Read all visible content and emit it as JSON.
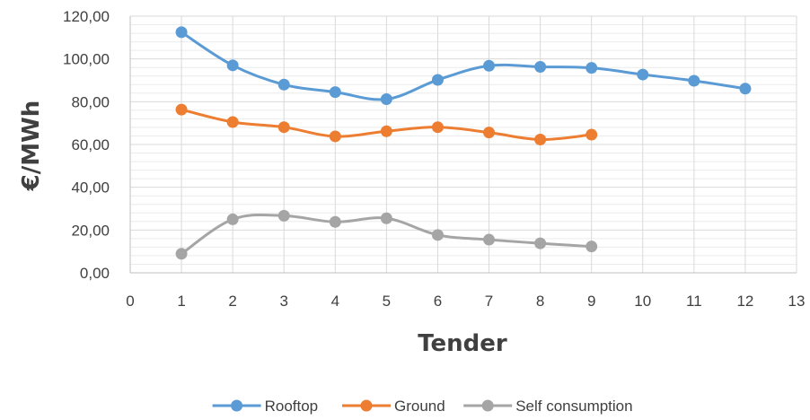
{
  "chart_data": {
    "type": "line",
    "title": "",
    "xlabel": "Tender",
    "ylabel": "€/MWh",
    "xlim": [
      0,
      13
    ],
    "ylim": [
      0,
      120
    ],
    "xticks": [
      0,
      1,
      2,
      3,
      4,
      5,
      6,
      7,
      8,
      9,
      10,
      11,
      12,
      13
    ],
    "xtick_labels": [
      "0",
      "1",
      "2",
      "3",
      "4",
      "5",
      "6",
      "7",
      "8",
      "9",
      "10",
      "11",
      "12",
      "13"
    ],
    "yticks": [
      0,
      20,
      40,
      60,
      80,
      100,
      120
    ],
    "ytick_labels": [
      "0,00",
      "20,00",
      "40,00",
      "60,00",
      "80,00",
      "100,00",
      "120,00"
    ],
    "grid": true,
    "minor_grid": true,
    "legend_position": "bottom",
    "smooth": true,
    "series": [
      {
        "name": "Rooftop",
        "color": "#5B9BD5",
        "x": [
          1,
          2,
          3,
          4,
          5,
          6,
          7,
          8,
          9,
          10,
          11,
          12
        ],
        "values": [
          112.5,
          97.0,
          88.0,
          84.5,
          81.2,
          90.2,
          96.8,
          96.3,
          95.8,
          92.7,
          89.8,
          86.1
        ]
      },
      {
        "name": "Ground",
        "color": "#ED7D31",
        "x": [
          1,
          2,
          3,
          4,
          5,
          6,
          7,
          8,
          9
        ],
        "values": [
          76.3,
          70.5,
          68.1,
          63.8,
          66.2,
          68.1,
          65.6,
          62.3,
          64.6
        ]
      },
      {
        "name": "Self consumption",
        "color": "#A5A5A5",
        "x": [
          1,
          2,
          3,
          4,
          5,
          6,
          7,
          8,
          9
        ],
        "values": [
          8.9,
          25.0,
          26.7,
          23.8,
          25.5,
          17.7,
          15.5,
          13.8,
          12.3
        ]
      }
    ]
  }
}
